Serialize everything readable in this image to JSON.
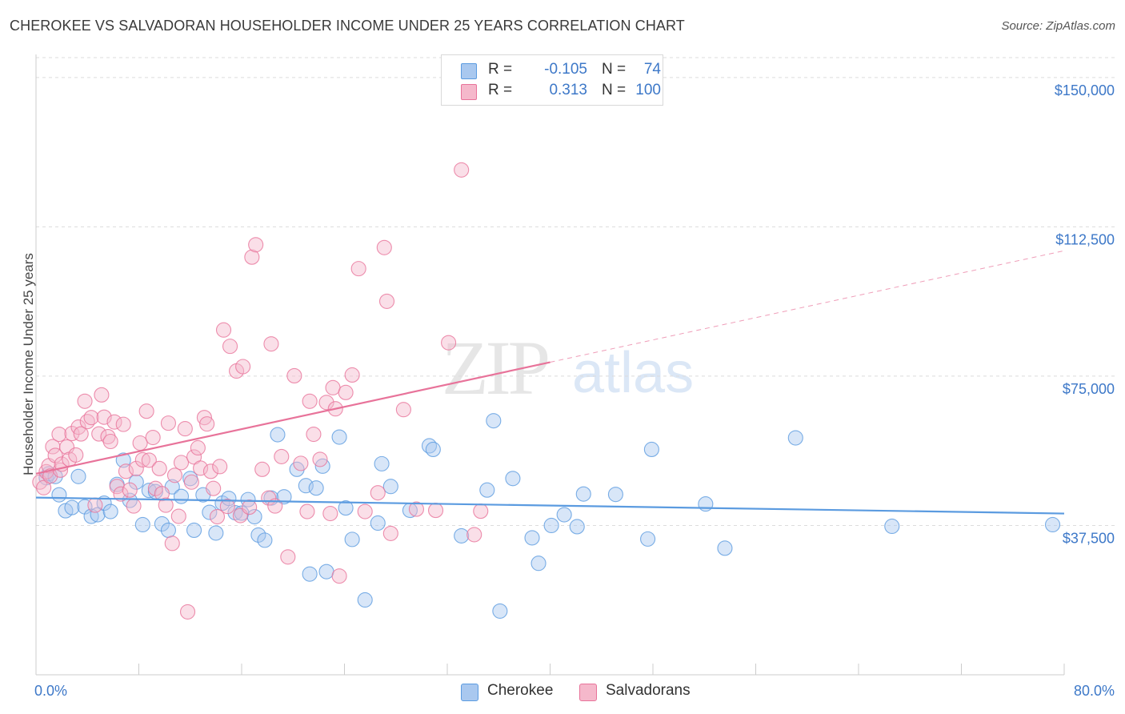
{
  "title": "CHEROKEE VS SALVADORAN HOUSEHOLDER INCOME UNDER 25 YEARS CORRELATION CHART",
  "source": "Source: ZipAtlas.com",
  "watermark": {
    "zip": "ZIP",
    "atlas": "atlas"
  },
  "legend": {
    "r_label": "R =",
    "n_label": "N =",
    "rows": [
      {
        "name": "Cherokee",
        "r": "-0.105",
        "n": "74",
        "color": "#a9c8ef"
      },
      {
        "name": "Salvadorans",
        "r": "0.313",
        "n": "100",
        "color": "#f5b8cb"
      }
    ]
  },
  "chart_data": {
    "type": "scatter",
    "title": "CHEROKEE VS SALVADORAN HOUSEHOLDER INCOME UNDER 25 YEARS CORRELATION CHART",
    "xlabel": "",
    "ylabel": "Householder Income Under 25 years",
    "xlim": [
      0,
      80
    ],
    "ylim": [
      0,
      155000
    ],
    "x_tick_labels": [
      "0.0%",
      "80.0%"
    ],
    "y_ticks": [
      37500,
      75000,
      112500,
      150000
    ],
    "y_tick_labels": [
      "$37,500",
      "$75,000",
      "$112,500",
      "$150,000"
    ],
    "grid": true,
    "legend_position": "top-center",
    "series": [
      {
        "name": "Cherokee",
        "color": "#5b9be0",
        "fill": "#a9c8ef",
        "trend": {
          "x": [
            0,
            80
          ],
          "y": [
            44500,
            40500
          ],
          "dashed_from": null
        },
        "points": [
          [
            0.8,
            49500
          ],
          [
            1.0,
            50500
          ],
          [
            1.5,
            49800
          ],
          [
            1.8,
            45200
          ],
          [
            2.3,
            41200
          ],
          [
            2.8,
            42000
          ],
          [
            3.3,
            49800
          ],
          [
            3.8,
            42200
          ],
          [
            4.3,
            39800
          ],
          [
            4.8,
            40200
          ],
          [
            5.3,
            43100
          ],
          [
            5.8,
            41000
          ],
          [
            6.3,
            47800
          ],
          [
            6.8,
            53900
          ],
          [
            7.3,
            43800
          ],
          [
            7.8,
            48400
          ],
          [
            8.3,
            37700
          ],
          [
            8.8,
            46300
          ],
          [
            9.3,
            46000
          ],
          [
            9.8,
            37900
          ],
          [
            10.3,
            36300
          ],
          [
            10.6,
            47200
          ],
          [
            11.3,
            44800
          ],
          [
            12.0,
            49300
          ],
          [
            12.3,
            36300
          ],
          [
            13.0,
            45200
          ],
          [
            13.5,
            40800
          ],
          [
            14.0,
            35600
          ],
          [
            14.5,
            43100
          ],
          [
            15.0,
            44300
          ],
          [
            15.5,
            40700
          ],
          [
            16.0,
            40600
          ],
          [
            16.5,
            44000
          ],
          [
            17.0,
            39700
          ],
          [
            17.3,
            35100
          ],
          [
            17.8,
            33800
          ],
          [
            18.3,
            44400
          ],
          [
            18.8,
            60300
          ],
          [
            19.3,
            44700
          ],
          [
            20.3,
            51600
          ],
          [
            21.0,
            47500
          ],
          [
            21.3,
            25300
          ],
          [
            21.8,
            46900
          ],
          [
            22.3,
            52400
          ],
          [
            22.6,
            25900
          ],
          [
            23.6,
            59700
          ],
          [
            24.1,
            41900
          ],
          [
            24.6,
            34000
          ],
          [
            25.6,
            18800
          ],
          [
            26.6,
            38100
          ],
          [
            26.9,
            53000
          ],
          [
            27.6,
            47300
          ],
          [
            29.1,
            41300
          ],
          [
            30.6,
            57500
          ],
          [
            30.9,
            56600
          ],
          [
            33.1,
            34900
          ],
          [
            35.1,
            46400
          ],
          [
            35.6,
            63800
          ],
          [
            36.1,
            16000
          ],
          [
            37.1,
            49300
          ],
          [
            38.6,
            34400
          ],
          [
            39.1,
            28000
          ],
          [
            40.1,
            37500
          ],
          [
            41.1,
            40200
          ],
          [
            42.1,
            37200
          ],
          [
            42.6,
            45400
          ],
          [
            45.1,
            45300
          ],
          [
            47.6,
            34100
          ],
          [
            47.9,
            56600
          ],
          [
            52.1,
            42900
          ],
          [
            53.6,
            31800
          ],
          [
            59.1,
            59500
          ],
          [
            66.6,
            37300
          ],
          [
            79.1,
            37700
          ]
        ]
      },
      {
        "name": "Salvadorans",
        "color": "#e8739a",
        "fill": "#f5b8cb",
        "trend": {
          "x": [
            0,
            40,
            80
          ],
          "y": [
            50500,
            78500,
            106500
          ],
          "dashed_from": 40
        },
        "points": [
          [
            0.3,
            48400
          ],
          [
            0.6,
            47000
          ],
          [
            0.8,
            51000
          ],
          [
            1.0,
            52500
          ],
          [
            1.1,
            49900
          ],
          [
            1.3,
            57300
          ],
          [
            1.5,
            55100
          ],
          [
            1.8,
            60400
          ],
          [
            1.9,
            51400
          ],
          [
            2.0,
            52900
          ],
          [
            2.4,
            57200
          ],
          [
            2.6,
            54100
          ],
          [
            2.8,
            60600
          ],
          [
            3.1,
            55200
          ],
          [
            3.3,
            62200
          ],
          [
            3.5,
            60500
          ],
          [
            3.8,
            68700
          ],
          [
            4.0,
            63600
          ],
          [
            4.3,
            64600
          ],
          [
            4.6,
            42600
          ],
          [
            4.9,
            60500
          ],
          [
            5.1,
            70300
          ],
          [
            5.3,
            64700
          ],
          [
            5.6,
            59800
          ],
          [
            5.8,
            58600
          ],
          [
            6.1,
            63500
          ],
          [
            6.3,
            47300
          ],
          [
            6.6,
            45400
          ],
          [
            6.8,
            62900
          ],
          [
            7.0,
            51100
          ],
          [
            7.3,
            46400
          ],
          [
            7.6,
            42400
          ],
          [
            7.8,
            51800
          ],
          [
            8.1,
            58200
          ],
          [
            8.3,
            54000
          ],
          [
            8.6,
            66200
          ],
          [
            8.8,
            53900
          ],
          [
            9.1,
            59600
          ],
          [
            9.3,
            46800
          ],
          [
            9.6,
            51800
          ],
          [
            9.8,
            45500
          ],
          [
            10.1,
            42600
          ],
          [
            10.3,
            63200
          ],
          [
            10.6,
            33000
          ],
          [
            10.8,
            50100
          ],
          [
            11.1,
            39800
          ],
          [
            11.3,
            53300
          ],
          [
            11.6,
            61800
          ],
          [
            11.8,
            15800
          ],
          [
            12.1,
            48400
          ],
          [
            12.3,
            54700
          ],
          [
            12.6,
            57000
          ],
          [
            12.8,
            51900
          ],
          [
            13.1,
            64600
          ],
          [
            13.3,
            63000
          ],
          [
            13.6,
            51100
          ],
          [
            13.8,
            46800
          ],
          [
            14.1,
            39700
          ],
          [
            14.3,
            52300
          ],
          [
            14.6,
            86600
          ],
          [
            14.9,
            42300
          ],
          [
            15.1,
            82500
          ],
          [
            15.6,
            76300
          ],
          [
            15.9,
            40000
          ],
          [
            16.1,
            77400
          ],
          [
            16.6,
            42100
          ],
          [
            16.8,
            104900
          ],
          [
            17.1,
            108000
          ],
          [
            17.6,
            51600
          ],
          [
            18.1,
            44400
          ],
          [
            18.3,
            83100
          ],
          [
            18.6,
            42400
          ],
          [
            19.1,
            54800
          ],
          [
            19.6,
            29600
          ],
          [
            20.1,
            75100
          ],
          [
            20.6,
            53100
          ],
          [
            21.1,
            41000
          ],
          [
            21.3,
            68700
          ],
          [
            21.6,
            60400
          ],
          [
            22.1,
            54100
          ],
          [
            22.6,
            68400
          ],
          [
            23.1,
            72100
          ],
          [
            23.3,
            66800
          ],
          [
            23.6,
            24800
          ],
          [
            24.1,
            70900
          ],
          [
            24.6,
            75300
          ],
          [
            25.1,
            102000
          ],
          [
            25.6,
            41000
          ],
          [
            26.6,
            45700
          ],
          [
            27.1,
            107300
          ],
          [
            27.3,
            93800
          ],
          [
            27.6,
            35500
          ],
          [
            28.6,
            66600
          ],
          [
            31.1,
            41300
          ],
          [
            32.1,
            83400
          ],
          [
            33.1,
            126800
          ],
          [
            34.1,
            35200
          ],
          [
            34.6,
            41100
          ],
          [
            29.6,
            41600
          ],
          [
            22.9,
            40500
          ]
        ]
      }
    ]
  }
}
